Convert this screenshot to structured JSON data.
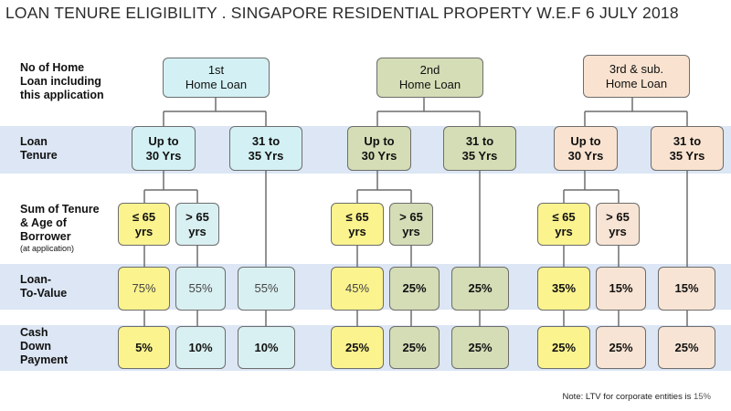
{
  "title": "LOAN TENURE ELIGIBILITY . SINGAPORE RESIDENTIAL PROPERTY W.E.F 6 JULY 2018",
  "row_labels": {
    "loans": "No of Home\nLoan including\nthis application",
    "tenure": "Loan\nTenure",
    "sum": "Sum of Tenure\n& Age of\nBorrower",
    "sum_sub": "(at application)",
    "ltv": "Loan-\nTo-Value",
    "cash": "Cash\nDown\nPayment"
  },
  "groups": [
    {
      "loan": "1st\nHome Loan",
      "tenure_a": "Up to\n30 Yrs",
      "tenure_b": "31 to\n35 Yrs",
      "age_a": "≤ 65\nyrs",
      "age_b": "> 65\nyrs",
      "ltv": [
        "75%",
        "55%",
        "55%"
      ],
      "cash": [
        "5%",
        "10%",
        "10%"
      ]
    },
    {
      "loan": "2nd\nHome Loan",
      "tenure_a": "Up to\n30 Yrs",
      "tenure_b": "31 to\n35 Yrs",
      "age_a": "≤ 65\nyrs",
      "age_b": "> 65\nyrs",
      "ltv": [
        "45%",
        "25%",
        "25%"
      ],
      "cash": [
        "25%",
        "25%",
        "25%"
      ]
    },
    {
      "loan": "3rd & sub.\nHome Loan",
      "tenure_a": "Up to\n30 Yrs",
      "tenure_b": "31 to\n35 Yrs",
      "age_a": "≤ 65\nyrs",
      "age_b": "> 65\nyrs",
      "ltv": [
        "35%",
        "15%",
        "15%"
      ],
      "cash": [
        "25%",
        "25%",
        "25%"
      ]
    }
  ],
  "note_prefix": "Note: LTV for corporate entities is ",
  "note_value": "15%",
  "colors": {
    "band": "#dce6f4",
    "group1": "#d3f1f4",
    "group2": "#d4ddb6",
    "group3": "#f9e3d0",
    "yellow": "#fbf38e",
    "connector": "#6d6d6d"
  }
}
